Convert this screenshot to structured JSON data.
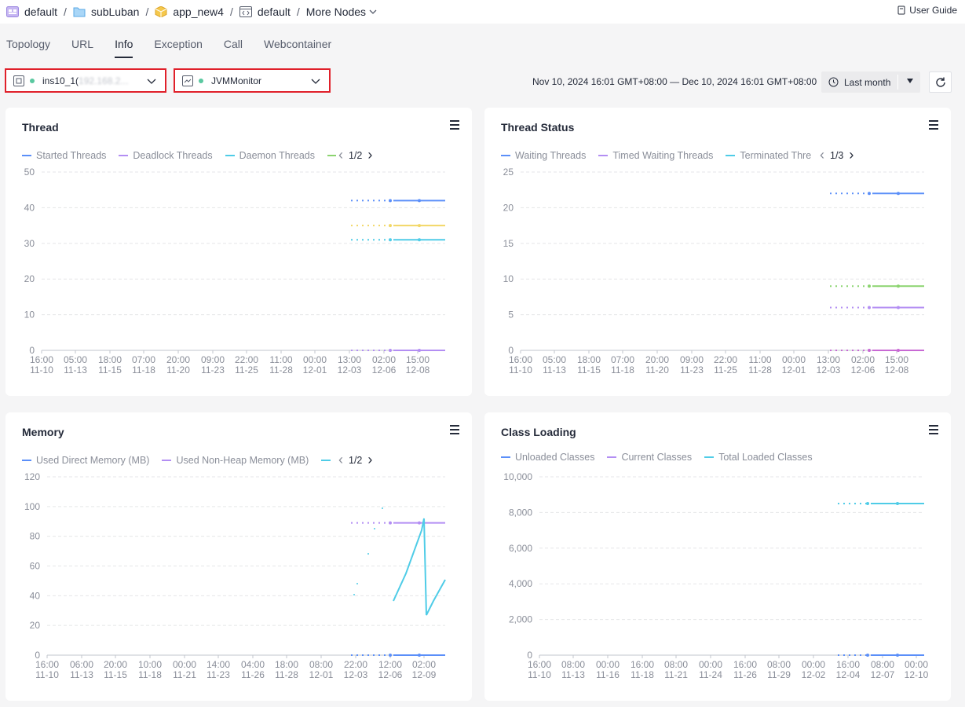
{
  "breadcrumb": {
    "items": [
      {
        "label": "default",
        "icon": "workspace-icon"
      },
      {
        "label": "subLuban",
        "icon": "folder-icon"
      },
      {
        "label": "app_new4",
        "icon": "cube-icon"
      },
      {
        "label": "default",
        "icon": "code-window-icon"
      }
    ],
    "more_nodes": "More Nodes",
    "separator": "/"
  },
  "user_guide": "User Guide",
  "tabs": [
    "Topology",
    "URL",
    "Info",
    "Exception",
    "Call",
    "Webcontainer"
  ],
  "active_tab": "Info",
  "instance_select": {
    "prefix": "ins10_1(",
    "masked": "192.168.2...",
    "status_color": "#5ac8a0"
  },
  "monitor_select": {
    "value": "JVMMonitor",
    "status_color": "#5ac8a0"
  },
  "time_range": "Nov 10, 2024 16:01 GMT+08:00 — Dec 10, 2024 16:01 GMT+08:00",
  "period": "Last month",
  "colors": {
    "blue": "#5b8ff9",
    "purple": "#b38ef3",
    "cyan": "#4fcce7",
    "yellow": "#f2d766",
    "green": "#8bd46f",
    "magenta": "#c869d4"
  },
  "chart_data": [
    {
      "type": "line",
      "title": "Thread",
      "legend": [
        "Started Threads",
        "Deadlock Threads",
        "Daemon Threads",
        ""
      ],
      "legend_colors": [
        "#5b8ff9",
        "#b38ef3",
        "#4fcce7",
        "#8bd46f"
      ],
      "pager": "1/2",
      "ylim": [
        0,
        50
      ],
      "yticks": [
        "0",
        "10",
        "20",
        "30",
        "40",
        "50"
      ],
      "xticks": [
        [
          "16:00",
          "11-10"
        ],
        [
          "05:00",
          "11-13"
        ],
        [
          "18:00",
          "11-15"
        ],
        [
          "07:00",
          "11-18"
        ],
        [
          "20:00",
          "11-20"
        ],
        [
          "09:00",
          "11-23"
        ],
        [
          "22:00",
          "11-25"
        ],
        [
          "11:00",
          "11-28"
        ],
        [
          "00:00",
          "12-01"
        ],
        [
          "13:00",
          "12-03"
        ],
        [
          "02:00",
          "12-06"
        ],
        [
          "15:00",
          "12-08"
        ]
      ],
      "series": [
        {
          "color": "#5b8ff9",
          "y": 42
        },
        {
          "color": "#f2d766",
          "y": 35
        },
        {
          "color": "#4fcce7",
          "y": 31
        },
        {
          "color": "#b38ef3",
          "y": 0
        }
      ]
    },
    {
      "type": "line",
      "title": "Thread Status",
      "legend": [
        "Waiting Threads",
        "Timed Waiting Threads",
        "Terminated Thre"
      ],
      "legend_colors": [
        "#5b8ff9",
        "#b38ef3",
        "#4fcce7"
      ],
      "pager": "1/3",
      "ylim": [
        0,
        25
      ],
      "yticks": [
        "0",
        "5",
        "10",
        "15",
        "20",
        "25"
      ],
      "xticks": [
        [
          "16:00",
          "11-10"
        ],
        [
          "05:00",
          "11-13"
        ],
        [
          "18:00",
          "11-15"
        ],
        [
          "07:00",
          "11-18"
        ],
        [
          "20:00",
          "11-20"
        ],
        [
          "09:00",
          "11-23"
        ],
        [
          "22:00",
          "11-25"
        ],
        [
          "11:00",
          "11-28"
        ],
        [
          "00:00",
          "12-01"
        ],
        [
          "13:00",
          "12-03"
        ],
        [
          "02:00",
          "12-06"
        ],
        [
          "15:00",
          "12-08"
        ]
      ],
      "series": [
        {
          "color": "#5b8ff9",
          "y": 22
        },
        {
          "color": "#8bd46f",
          "y": 9
        },
        {
          "color": "#b38ef3",
          "y": 6
        },
        {
          "color": "#c869d4",
          "y": 0
        }
      ]
    },
    {
      "type": "line",
      "title": "Memory",
      "legend": [
        "Used Direct Memory (MB)",
        "Used Non-Heap Memory (MB)",
        ""
      ],
      "legend_colors": [
        "#5b8ff9",
        "#b38ef3",
        "#4fcce7"
      ],
      "pager": "1/2",
      "ylim": [
        0,
        120
      ],
      "yticks": [
        "0",
        "20",
        "40",
        "60",
        "80",
        "100",
        "120"
      ],
      "xticks": [
        [
          "16:00",
          "11-10"
        ],
        [
          "06:00",
          "11-13"
        ],
        [
          "20:00",
          "11-15"
        ],
        [
          "10:00",
          "11-18"
        ],
        [
          "00:00",
          "11-21"
        ],
        [
          "14:00",
          "11-23"
        ],
        [
          "04:00",
          "11-26"
        ],
        [
          "18:00",
          "11-28"
        ],
        [
          "08:00",
          "12-01"
        ],
        [
          "22:00",
          "12-03"
        ],
        [
          "12:00",
          "12-06"
        ],
        [
          "02:00",
          "12-09"
        ]
      ],
      "series": [
        {
          "color": "#b38ef3",
          "y": 89
        },
        {
          "color": "#5b8ff9",
          "y": 0
        },
        {
          "color": "#4fcce7",
          "y": "sawtooth"
        }
      ]
    },
    {
      "type": "line",
      "title": "Class Loading",
      "legend": [
        "Unloaded Classes",
        "Current Classes",
        "Total Loaded Classes"
      ],
      "legend_colors": [
        "#5b8ff9",
        "#b38ef3",
        "#4fcce7"
      ],
      "pager": "",
      "ylim": [
        0,
        10000
      ],
      "yticks": [
        "0",
        "2,000",
        "4,000",
        "6,000",
        "8,000",
        "10,000"
      ],
      "xticks": [
        [
          "16:00",
          "11-10"
        ],
        [
          "08:00",
          "11-13"
        ],
        [
          "00:00",
          "11-16"
        ],
        [
          "16:00",
          "11-18"
        ],
        [
          "08:00",
          "11-21"
        ],
        [
          "00:00",
          "11-24"
        ],
        [
          "16:00",
          "11-26"
        ],
        [
          "08:00",
          "11-29"
        ],
        [
          "00:00",
          "12-02"
        ],
        [
          "16:00",
          "12-04"
        ],
        [
          "08:00",
          "12-07"
        ],
        [
          "00:00",
          "12-10"
        ]
      ],
      "series": [
        {
          "color": "#4fcce7",
          "y": 8500
        },
        {
          "color": "#5b8ff9",
          "y": 0
        }
      ]
    }
  ]
}
